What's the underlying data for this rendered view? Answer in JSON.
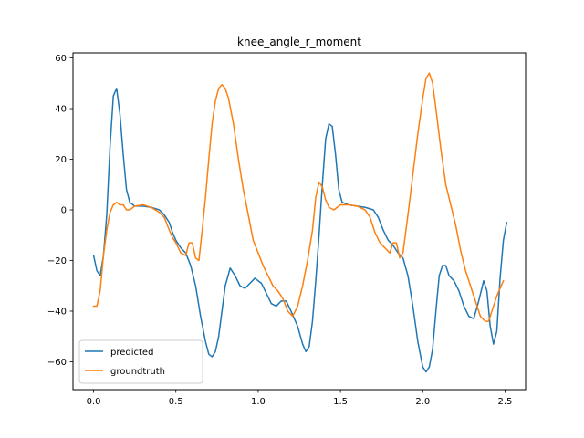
{
  "chart_data": {
    "type": "line",
    "title": "knee_angle_r_moment",
    "xlabel": "",
    "ylabel": "",
    "xlim": [
      -0.125,
      2.625
    ],
    "ylim": [
      -71,
      62
    ],
    "xticks": [
      0.0,
      0.5,
      1.0,
      1.5,
      2.0,
      2.5
    ],
    "xtick_labels": [
      "0.0",
      "0.5",
      "1.0",
      "1.5",
      "2.0",
      "2.5"
    ],
    "yticks": [
      -60,
      -40,
      -20,
      0,
      20,
      40,
      60
    ],
    "ytick_labels": [
      "−60",
      "−40",
      "−20",
      "0",
      "20",
      "40",
      "60"
    ],
    "grid": false,
    "legend_position": "lower-left",
    "series": [
      {
        "name": "predicted",
        "color": "#1f77b4",
        "points": [
          [
            0.0,
            -18
          ],
          [
            0.02,
            -24
          ],
          [
            0.04,
            -26
          ],
          [
            0.06,
            -18
          ],
          [
            0.08,
            -2
          ],
          [
            0.1,
            25
          ],
          [
            0.12,
            45
          ],
          [
            0.14,
            48
          ],
          [
            0.16,
            38
          ],
          [
            0.18,
            22
          ],
          [
            0.2,
            8
          ],
          [
            0.22,
            3
          ],
          [
            0.25,
            1.5
          ],
          [
            0.3,
            1.5
          ],
          [
            0.35,
            1
          ],
          [
            0.4,
            0
          ],
          [
            0.43,
            -2
          ],
          [
            0.46,
            -5
          ],
          [
            0.48,
            -9
          ],
          [
            0.5,
            -12
          ],
          [
            0.53,
            -15
          ],
          [
            0.56,
            -17
          ],
          [
            0.59,
            -22
          ],
          [
            0.62,
            -30
          ],
          [
            0.65,
            -42
          ],
          [
            0.68,
            -52
          ],
          [
            0.7,
            -57
          ],
          [
            0.72,
            -58
          ],
          [
            0.74,
            -56
          ],
          [
            0.76,
            -50
          ],
          [
            0.78,
            -40
          ],
          [
            0.8,
            -30
          ],
          [
            0.83,
            -23
          ],
          [
            0.86,
            -26
          ],
          [
            0.89,
            -30
          ],
          [
            0.92,
            -31
          ],
          [
            0.95,
            -29
          ],
          [
            0.98,
            -27
          ],
          [
            1.02,
            -29
          ],
          [
            1.05,
            -33
          ],
          [
            1.08,
            -37
          ],
          [
            1.11,
            -38
          ],
          [
            1.14,
            -36
          ],
          [
            1.17,
            -36
          ],
          [
            1.2,
            -40
          ],
          [
            1.24,
            -46
          ],
          [
            1.27,
            -53
          ],
          [
            1.29,
            -56
          ],
          [
            1.31,
            -54
          ],
          [
            1.33,
            -44
          ],
          [
            1.35,
            -28
          ],
          [
            1.37,
            -10
          ],
          [
            1.39,
            10
          ],
          [
            1.41,
            28
          ],
          [
            1.43,
            34
          ],
          [
            1.45,
            33
          ],
          [
            1.47,
            22
          ],
          [
            1.49,
            8
          ],
          [
            1.51,
            3
          ],
          [
            1.55,
            2
          ],
          [
            1.6,
            1.5
          ],
          [
            1.65,
            1
          ],
          [
            1.7,
            0
          ],
          [
            1.73,
            -3
          ],
          [
            1.76,
            -8
          ],
          [
            1.79,
            -12
          ],
          [
            1.82,
            -14
          ],
          [
            1.85,
            -17
          ],
          [
            1.88,
            -19
          ],
          [
            1.91,
            -26
          ],
          [
            1.94,
            -38
          ],
          [
            1.97,
            -52
          ],
          [
            2.0,
            -62
          ],
          [
            2.02,
            -64
          ],
          [
            2.04,
            -62
          ],
          [
            2.06,
            -55
          ],
          [
            2.08,
            -40
          ],
          [
            2.1,
            -26
          ],
          [
            2.12,
            -22
          ],
          [
            2.14,
            -22
          ],
          [
            2.16,
            -26
          ],
          [
            2.19,
            -28
          ],
          [
            2.22,
            -32
          ],
          [
            2.25,
            -38
          ],
          [
            2.28,
            -42
          ],
          [
            2.31,
            -43
          ],
          [
            2.34,
            -36
          ],
          [
            2.37,
            -28
          ],
          [
            2.39,
            -32
          ],
          [
            2.41,
            -46
          ],
          [
            2.43,
            -53
          ],
          [
            2.45,
            -48
          ],
          [
            2.47,
            -27
          ],
          [
            2.49,
            -12
          ],
          [
            2.51,
            -5
          ]
        ]
      },
      {
        "name": "groundtruth",
        "color": "#ff7f0e",
        "points": [
          [
            0.0,
            -38
          ],
          [
            0.02,
            -38
          ],
          [
            0.04,
            -32
          ],
          [
            0.06,
            -18
          ],
          [
            0.08,
            -8
          ],
          [
            0.1,
            -1
          ],
          [
            0.12,
            2
          ],
          [
            0.14,
            3
          ],
          [
            0.16,
            2
          ],
          [
            0.18,
            2
          ],
          [
            0.2,
            0
          ],
          [
            0.22,
            0
          ],
          [
            0.25,
            1.5
          ],
          [
            0.3,
            2
          ],
          [
            0.35,
            1
          ],
          [
            0.4,
            -1
          ],
          [
            0.43,
            -3
          ],
          [
            0.46,
            -8
          ],
          [
            0.48,
            -11
          ],
          [
            0.5,
            -13
          ],
          [
            0.53,
            -17
          ],
          [
            0.56,
            -18
          ],
          [
            0.58,
            -13
          ],
          [
            0.6,
            -13
          ],
          [
            0.62,
            -19
          ],
          [
            0.64,
            -20
          ],
          [
            0.66,
            -8
          ],
          [
            0.68,
            5
          ],
          [
            0.7,
            20
          ],
          [
            0.72,
            34
          ],
          [
            0.74,
            43
          ],
          [
            0.76,
            48
          ],
          [
            0.78,
            49.5
          ],
          [
            0.8,
            48
          ],
          [
            0.82,
            44
          ],
          [
            0.85,
            34
          ],
          [
            0.88,
            20
          ],
          [
            0.91,
            8
          ],
          [
            0.94,
            -2
          ],
          [
            0.97,
            -12
          ],
          [
            1.0,
            -17
          ],
          [
            1.03,
            -22
          ],
          [
            1.06,
            -26
          ],
          [
            1.09,
            -30
          ],
          [
            1.12,
            -32
          ],
          [
            1.15,
            -35
          ],
          [
            1.18,
            -40
          ],
          [
            1.21,
            -42
          ],
          [
            1.24,
            -38
          ],
          [
            1.27,
            -30
          ],
          [
            1.3,
            -20
          ],
          [
            1.33,
            -8
          ],
          [
            1.35,
            5
          ],
          [
            1.37,
            11
          ],
          [
            1.39,
            9
          ],
          [
            1.41,
            4
          ],
          [
            1.43,
            1
          ],
          [
            1.46,
            0
          ],
          [
            1.5,
            2
          ],
          [
            1.55,
            2
          ],
          [
            1.6,
            1.5
          ],
          [
            1.65,
            0
          ],
          [
            1.68,
            -3
          ],
          [
            1.71,
            -9
          ],
          [
            1.74,
            -13
          ],
          [
            1.77,
            -15
          ],
          [
            1.8,
            -17
          ],
          [
            1.82,
            -13
          ],
          [
            1.84,
            -13
          ],
          [
            1.86,
            -19
          ],
          [
            1.88,
            -17
          ],
          [
            1.91,
            -2
          ],
          [
            1.94,
            14
          ],
          [
            1.97,
            30
          ],
          [
            2.0,
            44
          ],
          [
            2.02,
            52
          ],
          [
            2.04,
            54
          ],
          [
            2.06,
            50
          ],
          [
            2.08,
            40
          ],
          [
            2.11,
            24
          ],
          [
            2.14,
            10
          ],
          [
            2.17,
            2
          ],
          [
            2.2,
            -6
          ],
          [
            2.23,
            -16
          ],
          [
            2.26,
            -24
          ],
          [
            2.29,
            -30
          ],
          [
            2.32,
            -36
          ],
          [
            2.35,
            -42
          ],
          [
            2.38,
            -44
          ],
          [
            2.4,
            -44
          ],
          [
            2.42,
            -40
          ],
          [
            2.45,
            -34
          ],
          [
            2.47,
            -31
          ],
          [
            2.49,
            -28
          ]
        ]
      }
    ]
  }
}
